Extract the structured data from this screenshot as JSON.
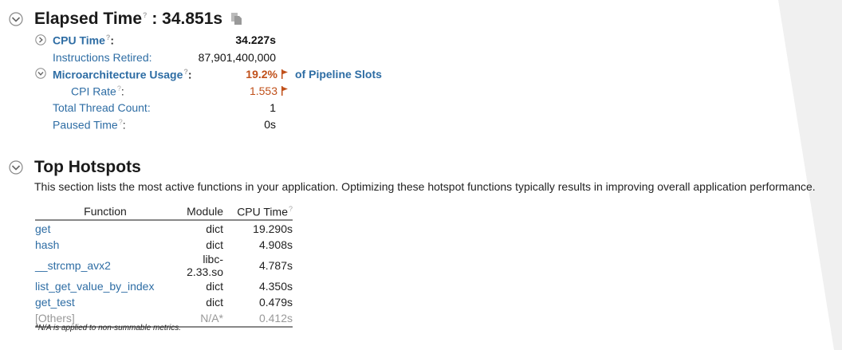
{
  "summary": {
    "elapsed": {
      "label": "Elapsed Time",
      "value": ": 34.851s"
    },
    "metrics": {
      "cpu_time": {
        "label": "CPU Time",
        "value": "34.227s"
      },
      "instructions_retired": {
        "label": "Instructions Retired:",
        "value": "87,901,400,000"
      },
      "microarch": {
        "label": "Microarchitecture Usage",
        "value": "19.2%",
        "suffix": "of Pipeline Slots"
      },
      "cpi_rate": {
        "label": "CPI Rate",
        "value": "1.553"
      },
      "thread_count": {
        "label": "Total Thread Count:",
        "value": "1"
      },
      "paused_time": {
        "label": "Paused Time",
        "value": "0s"
      }
    },
    "help_mark": "?",
    "colon": ":"
  },
  "hotspots": {
    "title": "Top Hotspots",
    "description": "This section lists the most active functions in your application. Optimizing these hotspot functions typically results in improving overall application performance.",
    "columns": [
      "Function",
      "Module",
      "CPU Time"
    ],
    "rows": [
      {
        "function": "get",
        "module": "dict",
        "cpu": "19.290s"
      },
      {
        "function": "hash",
        "module": "dict",
        "cpu": "4.908s"
      },
      {
        "function": "__strcmp_avx2",
        "module": "libc-2.33.so",
        "cpu": "4.787s"
      },
      {
        "function": "list_get_value_by_index",
        "module": "dict",
        "cpu": "4.350s"
      },
      {
        "function": "get_test",
        "module": "dict",
        "cpu": "0.479s"
      },
      {
        "function": "[Others]",
        "module": "N/A*",
        "cpu": "0.412s"
      }
    ],
    "footnote": "*N/A is applied to non-summable metrics."
  },
  "colors": {
    "link": "#2e6da4",
    "warning": "#c0501a",
    "muted": "#999999"
  }
}
